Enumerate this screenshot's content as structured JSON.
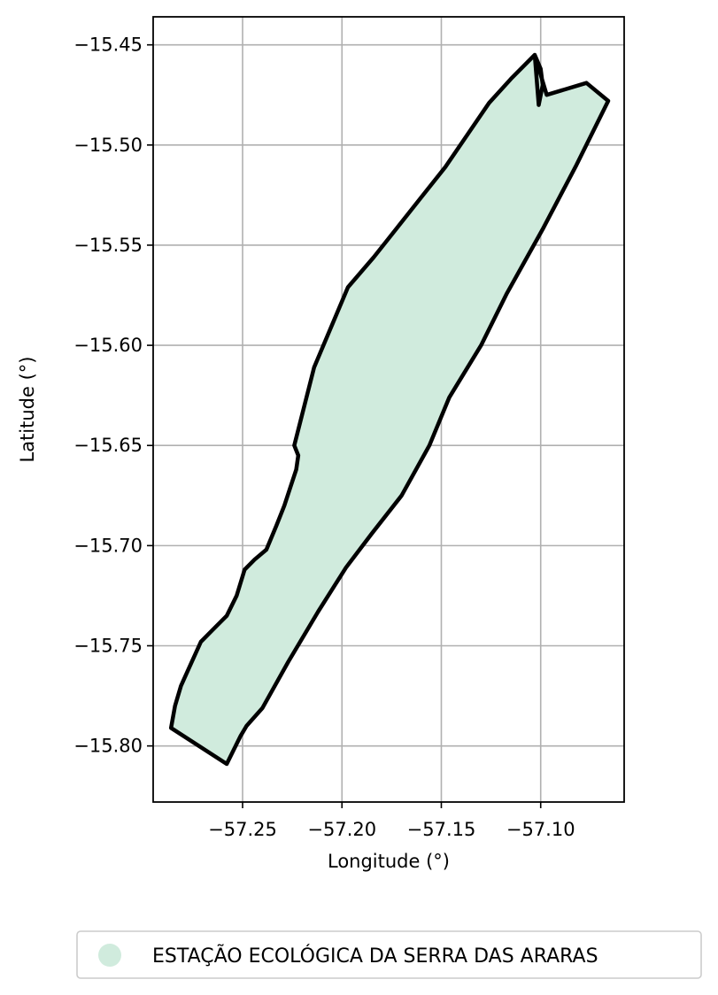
{
  "chart_data": {
    "type": "map",
    "xlabel": "Longitude (°)",
    "ylabel": "Latitude (°)",
    "xlim": [
      -57.295,
      -57.058
    ],
    "ylim": [
      -15.828,
      -15.436
    ],
    "xticks": [
      -57.25,
      -57.2,
      -57.15,
      -57.1
    ],
    "xtick_labels": [
      "−57.25",
      "−57.20",
      "−57.15",
      "−57.10"
    ],
    "yticks": [
      -15.45,
      -15.5,
      -15.55,
      -15.6,
      -15.65,
      -15.7,
      -15.75,
      -15.8
    ],
    "ytick_labels": [
      "−15.45",
      "−15.50",
      "−15.55",
      "−15.60",
      "−15.65",
      "−15.70",
      "−15.75",
      "−15.80"
    ],
    "grid": true,
    "legend_position": "bottom",
    "series": [
      {
        "name": "ESTAÇÃO ECOLÓGICA DA SERRA DAS ARARAS",
        "fill_color": "#d0ebdd",
        "edge_color": "#000000",
        "polygon": [
          [
            -57.103,
            -15.455
          ],
          [
            -57.097,
            -15.475
          ],
          [
            -57.077,
            -15.469
          ],
          [
            -57.066,
            -15.478
          ],
          [
            -57.082,
            -15.51
          ],
          [
            -57.099,
            -15.542
          ],
          [
            -57.117,
            -15.574
          ],
          [
            -57.13,
            -15.6
          ],
          [
            -57.146,
            -15.626
          ],
          [
            -57.156,
            -15.65
          ],
          [
            -57.17,
            -15.675
          ],
          [
            -57.185,
            -15.694
          ],
          [
            -57.198,
            -15.711
          ],
          [
            -57.212,
            -15.733
          ],
          [
            -57.227,
            -15.758
          ],
          [
            -57.24,
            -15.781
          ],
          [
            -57.248,
            -15.79
          ],
          [
            -57.251,
            -15.795
          ],
          [
            -57.258,
            -15.809
          ],
          [
            -57.286,
            -15.791
          ],
          [
            -57.284,
            -15.78
          ],
          [
            -57.281,
            -15.77
          ],
          [
            -57.276,
            -15.759
          ],
          [
            -57.271,
            -15.748
          ],
          [
            -57.265,
            -15.742
          ],
          [
            -57.258,
            -15.735
          ],
          [
            -57.253,
            -15.725
          ],
          [
            -57.249,
            -15.712
          ],
          [
            -57.244,
            -15.707
          ],
          [
            -57.238,
            -15.702
          ],
          [
            -57.233,
            -15.69
          ],
          [
            -57.229,
            -15.68
          ],
          [
            -57.226,
            -15.671
          ],
          [
            -57.223,
            -15.662
          ],
          [
            -57.222,
            -15.655
          ],
          [
            -57.224,
            -15.65
          ],
          [
            -57.214,
            -15.611
          ],
          [
            -57.197,
            -15.571
          ],
          [
            -57.184,
            -15.556
          ],
          [
            -57.172,
            -15.541
          ],
          [
            -57.16,
            -15.526
          ],
          [
            -57.148,
            -15.511
          ],
          [
            -57.137,
            -15.495
          ],
          [
            -57.126,
            -15.479
          ],
          [
            -57.115,
            -15.467
          ],
          [
            -57.103,
            -15.455
          ],
          [
            -57.1,
            -15.462
          ],
          [
            -57.099,
            -15.47
          ],
          [
            -57.101,
            -15.48
          ]
        ]
      }
    ]
  }
}
